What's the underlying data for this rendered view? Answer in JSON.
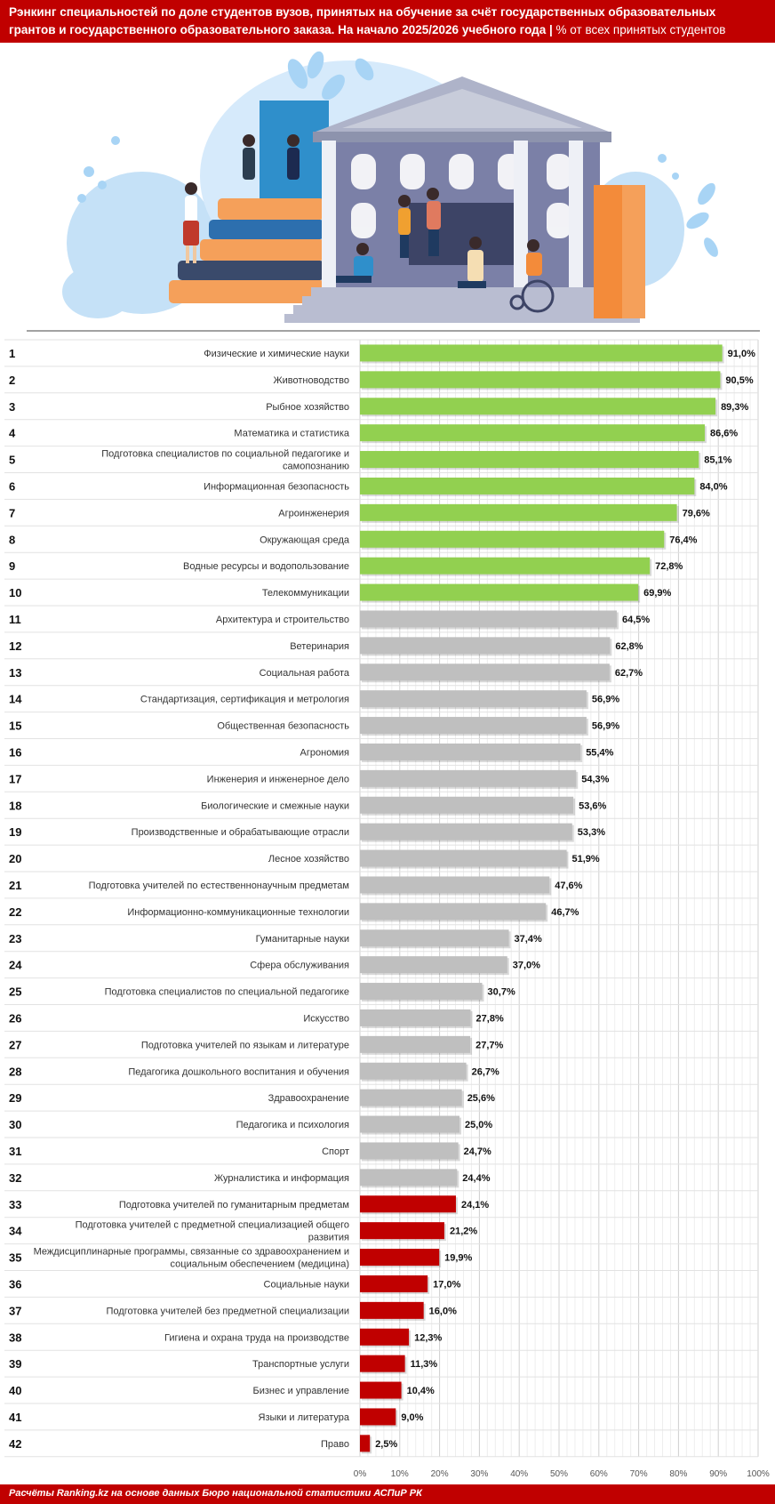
{
  "header": {
    "line1": "Рэнкинг специальностей по доле студентов вузов, принятых на обучение за счёт государственных образовательных",
    "line2": "грантов и государственного образовательного заказа. На начало 2025/2026 учебного года",
    "unit": "% от всех принятых студентов"
  },
  "footer": {
    "source": "Расчёты Ranking.kz на основе данных Бюро национальной статистики АСПиР РК"
  },
  "colors": {
    "accent": "#c00000",
    "top": "#92d050",
    "middle": "#bfbfbf",
    "bottom": "#c00000"
  },
  "chart_data": {
    "type": "bar",
    "orientation": "horizontal",
    "xlim": [
      0,
      100
    ],
    "x_ticks": [
      "0%",
      "10%",
      "20%",
      "30%",
      "40%",
      "50%",
      "60%",
      "70%",
      "80%",
      "90%",
      "100%"
    ],
    "grid": true,
    "ranks": [
      "1",
      "2",
      "3",
      "4",
      "5",
      "6",
      "7",
      "8",
      "9",
      "10",
      "11",
      "12",
      "13",
      "14",
      "15",
      "16",
      "17",
      "18",
      "19",
      "20",
      "21",
      "22",
      "23",
      "24",
      "25",
      "26",
      "27",
      "28",
      "29",
      "30",
      "31",
      "32",
      "33",
      "34",
      "35",
      "36",
      "37",
      "38",
      "39",
      "40",
      "41",
      "42"
    ],
    "categories": [
      "Физические и химические науки",
      "Животноводство",
      "Рыбное хозяйство",
      "Математика и статистика",
      "Подготовка специалистов по социальной педагогике и самопознанию",
      "Информационная безопасность",
      "Агроинженерия",
      "Окружающая среда",
      "Водные ресурсы и водопользование",
      "Телекоммуникации",
      "Архитектура и строительство",
      "Ветеринария",
      "Социальная работа",
      "Стандартизация, сертификация и метрология",
      "Общественная безопасность",
      "Агрономия",
      "Инженерия и инженерное дело",
      "Биологические и смежные науки",
      "Производственные и обрабатывающие отрасли",
      "Лесное хозяйство",
      "Подготовка учителей по естественнонаучным предметам",
      "Информационно-коммуникационные технологии",
      "Гуманитарные науки",
      "Сфера обслуживания",
      "Подготовка специалистов по специальной педагогике",
      "Искусство",
      "Подготовка учителей по языкам и литературе",
      "Педагогика дошкольного воспитания и обучения",
      "Здравоохранение",
      "Педагогика и психология",
      "Спорт",
      "Журналистика и информация",
      "Подготовка учителей по гуманитарным предметам",
      "Подготовка учителей с предметной специализацией общего развития",
      "Междисциплинарные программы, связанные со здравоохранением и социальным обеспечением (медицина)",
      "Социальные науки",
      "Подготовка учителей без предметной специализации",
      "Гигиена и охрана труда на производстве",
      "Транспортные услуги",
      "Бизнес и управление",
      "Языки и литература",
      "Право"
    ],
    "values": [
      91.0,
      90.5,
      89.3,
      86.6,
      85.1,
      84.0,
      79.6,
      76.4,
      72.8,
      69.9,
      64.5,
      62.8,
      62.7,
      56.9,
      56.9,
      55.4,
      54.3,
      53.6,
      53.3,
      51.9,
      47.6,
      46.7,
      37.4,
      37.0,
      30.7,
      27.8,
      27.7,
      26.7,
      25.6,
      25.0,
      24.7,
      24.4,
      24.1,
      21.2,
      19.9,
      17.0,
      16.0,
      12.3,
      11.3,
      10.4,
      9.0,
      2.5
    ],
    "value_labels": [
      "91,0%",
      "90,5%",
      "89,3%",
      "86,6%",
      "85,1%",
      "84,0%",
      "79,6%",
      "76,4%",
      "72,8%",
      "69,9%",
      "64,5%",
      "62,8%",
      "62,7%",
      "56,9%",
      "56,9%",
      "55,4%",
      "54,3%",
      "53,6%",
      "53,3%",
      "51,9%",
      "47,6%",
      "46,7%",
      "37,4%",
      "37,0%",
      "30,7%",
      "27,8%",
      "27,7%",
      "26,7%",
      "25,6%",
      "25,0%",
      "24,7%",
      "24,4%",
      "24,1%",
      "21,2%",
      "19,9%",
      "17,0%",
      "16,0%",
      "12,3%",
      "11,3%",
      "10,4%",
      "9,0%",
      "2,5%"
    ],
    "groups": [
      "top",
      "top",
      "top",
      "top",
      "top",
      "top",
      "top",
      "top",
      "top",
      "top",
      "middle",
      "middle",
      "middle",
      "middle",
      "middle",
      "middle",
      "middle",
      "middle",
      "middle",
      "middle",
      "middle",
      "middle",
      "middle",
      "middle",
      "middle",
      "middle",
      "middle",
      "middle",
      "middle",
      "middle",
      "middle",
      "middle",
      "bottom",
      "bottom",
      "bottom",
      "bottom",
      "bottom",
      "bottom",
      "bottom",
      "bottom",
      "bottom",
      "bottom"
    ]
  }
}
